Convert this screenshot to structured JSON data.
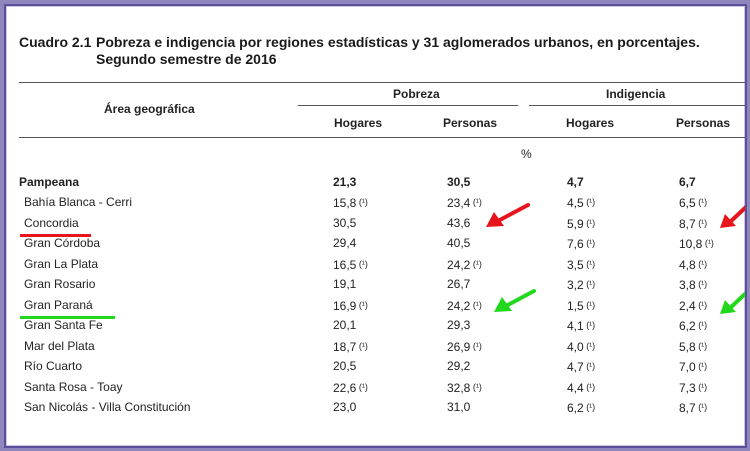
{
  "title": {
    "number": "Cuadro 2.1",
    "text": "Pobreza e indigencia por regiones estadísticas y 31 aglomerados urbanos, en porcentajes. Segundo semestre de 2016"
  },
  "headers": {
    "area": "Área geográfica",
    "pobreza": "Pobreza",
    "indigencia": "Indigencia",
    "hogares": "Hogares",
    "personas": "Personas",
    "unit": "%"
  },
  "footnote_mark": "(¹)",
  "region": {
    "name": "Pampeana",
    "pob_hog": "21,3",
    "pob_per": "30,5",
    "ind_hog": "4,7",
    "ind_per": "6,7"
  },
  "rows": [
    {
      "name": "Bahía Blanca - Cerri",
      "pob_hog": "15,8",
      "pob_hog_fn": true,
      "pob_per": "23,4",
      "pob_per_fn": true,
      "ind_hog": "4,5",
      "ind_hog_fn": true,
      "ind_per": "6,5",
      "ind_per_fn": true
    },
    {
      "name": "Concordia",
      "pob_hog": "30,5",
      "pob_hog_fn": false,
      "pob_per": "43,6",
      "pob_per_fn": false,
      "ind_hog": "5,9",
      "ind_hog_fn": true,
      "ind_per": "8,7",
      "ind_per_fn": true
    },
    {
      "name": "Gran Córdoba",
      "pob_hog": "29,4",
      "pob_hog_fn": false,
      "pob_per": "40,5",
      "pob_per_fn": false,
      "ind_hog": "7,6",
      "ind_hog_fn": true,
      "ind_per": "10,8",
      "ind_per_fn": true
    },
    {
      "name": "Gran La Plata",
      "pob_hog": "16,5",
      "pob_hog_fn": true,
      "pob_per": "24,2",
      "pob_per_fn": true,
      "ind_hog": "3,5",
      "ind_hog_fn": true,
      "ind_per": "4,8",
      "ind_per_fn": true
    },
    {
      "name": "Gran Rosario",
      "pob_hog": "19,1",
      "pob_hog_fn": false,
      "pob_per": "26,7",
      "pob_per_fn": false,
      "ind_hog": "3,2",
      "ind_hog_fn": true,
      "ind_per": "3,8",
      "ind_per_fn": true
    },
    {
      "name": "Gran Paraná",
      "pob_hog": "16,9",
      "pob_hog_fn": true,
      "pob_per": "24,2",
      "pob_per_fn": true,
      "ind_hog": "1,5",
      "ind_hog_fn": true,
      "ind_per": "2,4",
      "ind_per_fn": true
    },
    {
      "name": "Gran Santa Fe",
      "pob_hog": "20,1",
      "pob_hog_fn": false,
      "pob_per": "29,3",
      "pob_per_fn": false,
      "ind_hog": "4,1",
      "ind_hog_fn": true,
      "ind_per": "6,2",
      "ind_per_fn": true
    },
    {
      "name": "Mar del Plata",
      "pob_hog": "18,7",
      "pob_hog_fn": true,
      "pob_per": "26,9",
      "pob_per_fn": true,
      "ind_hog": "4,0",
      "ind_hog_fn": true,
      "ind_per": "5,8",
      "ind_per_fn": true
    },
    {
      "name": "Río Cuarto",
      "pob_hog": "20,5",
      "pob_hog_fn": false,
      "pob_per": "29,2",
      "pob_per_fn": false,
      "ind_hog": "4,7",
      "ind_hog_fn": true,
      "ind_per": "7,0",
      "ind_per_fn": true
    },
    {
      "name": "Santa Rosa - Toay",
      "pob_hog": "22,6",
      "pob_hog_fn": true,
      "pob_per": "32,8",
      "pob_per_fn": true,
      "ind_hog": "4,4",
      "ind_hog_fn": true,
      "ind_per": "7,3",
      "ind_per_fn": true
    },
    {
      "name": "San Nicolás - Villa Constitución",
      "pob_hog": "23,0",
      "pob_hog_fn": false,
      "pob_per": "31,0",
      "pob_per_fn": false,
      "ind_hog": "6,2",
      "ind_hog_fn": true,
      "ind_per": "8,7",
      "ind_per_fn": true
    }
  ],
  "annotations": {
    "red": "#e8141c",
    "green": "#22d81c"
  }
}
